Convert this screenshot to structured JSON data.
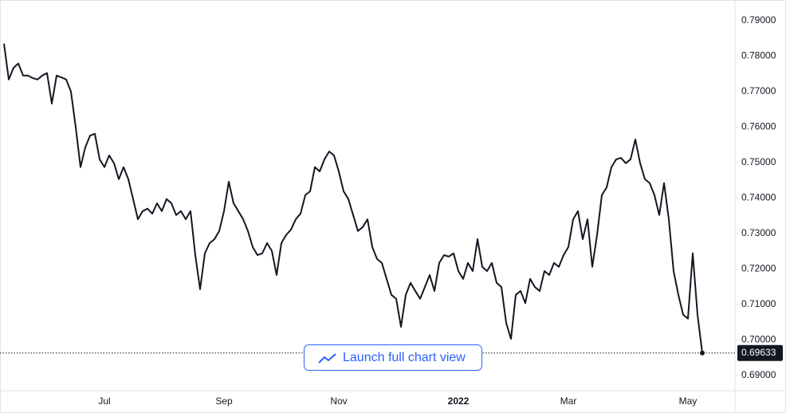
{
  "chart_data": {
    "type": "line",
    "categories": [
      null,
      null,
      null,
      null,
      null,
      null,
      null,
      null,
      null,
      null,
      null,
      null,
      null,
      null,
      null,
      null,
      null,
      null,
      null,
      null,
      null,
      "Jul",
      null,
      null,
      null,
      null,
      null,
      null,
      null,
      null,
      null,
      null,
      null,
      null,
      null,
      null,
      null,
      null,
      null,
      null,
      null,
      null,
      null,
      null,
      null,
      null,
      "Sep",
      null,
      null,
      null,
      null,
      null,
      null,
      null,
      null,
      null,
      null,
      null,
      null,
      null,
      null,
      null,
      null,
      null,
      null,
      null,
      null,
      null,
      null,
      null,
      "Nov",
      null,
      null,
      null,
      null,
      null,
      null,
      null,
      null,
      null,
      null,
      null,
      null,
      null,
      null,
      null,
      null,
      null,
      null,
      null,
      null,
      null,
      null,
      null,
      null,
      "2022",
      null,
      null,
      null,
      null,
      null,
      null,
      null,
      null,
      null,
      null,
      null,
      null,
      null,
      null,
      null,
      null,
      null,
      null,
      null,
      null,
      null,
      null,
      "Mar",
      null,
      null,
      null,
      null,
      null,
      null,
      null,
      null,
      null,
      null,
      null,
      null,
      null,
      null,
      null,
      null,
      null,
      null,
      null,
      null,
      null,
      null,
      null,
      null,
      "May",
      null,
      null,
      null
    ],
    "values": [
      0.7835,
      0.7734,
      0.7767,
      0.7779,
      0.7745,
      0.7745,
      0.7738,
      0.7734,
      0.7745,
      0.7752,
      0.7666,
      0.7745,
      0.774,
      0.7734,
      0.77,
      0.7599,
      0.7487,
      0.7543,
      0.7576,
      0.7581,
      0.7509,
      0.7487,
      0.752,
      0.7498,
      0.7453,
      0.7487,
      0.7453,
      0.7397,
      0.734,
      0.7363,
      0.737,
      0.7356,
      0.7385,
      0.7363,
      0.7397,
      0.7385,
      0.7352,
      0.7363,
      0.734,
      0.7363,
      0.7239,
      0.7143,
      0.7244,
      0.7273,
      0.7284,
      0.7307,
      0.7363,
      0.7446,
      0.7385,
      0.7363,
      0.734,
      0.7307,
      0.7262,
      0.7239,
      0.7244,
      0.7273,
      0.7251,
      0.7183,
      0.7273,
      0.7296,
      0.7311,
      0.734,
      0.7356,
      0.7408,
      0.7419,
      0.7487,
      0.7475,
      0.7509,
      0.7531,
      0.752,
      0.7475,
      0.7419,
      0.7397,
      0.7352,
      0.7307,
      0.7318,
      0.734,
      0.7262,
      0.7228,
      0.7217,
      0.7172,
      0.7127,
      0.7116,
      0.7037,
      0.7127,
      0.7161,
      0.7138,
      0.7116,
      0.7149,
      0.7183,
      0.7138,
      0.7217,
      0.7239,
      0.7235,
      0.7244,
      0.7194,
      0.7172,
      0.7217,
      0.7194,
      0.7284,
      0.7206,
      0.7194,
      0.7217,
      0.7161,
      0.7149,
      0.7048,
      0.7003,
      0.7127,
      0.7138,
      0.7104,
      0.7172,
      0.7149,
      0.7138,
      0.7194,
      0.7183,
      0.7217,
      0.7206,
      0.7239,
      0.7262,
      0.734,
      0.7363,
      0.7284,
      0.734,
      0.7206,
      0.7296,
      0.7408,
      0.743,
      0.7487,
      0.7509,
      0.7513,
      0.7498,
      0.7509,
      0.7565,
      0.7498,
      0.7453,
      0.7442,
      0.7408,
      0.7352,
      0.7442,
      0.734,
      0.7194,
      0.7127,
      0.7071,
      0.706,
      0.7244,
      0.7071,
      0.69633
    ],
    "color": "#131722",
    "ylim": [
      0.6857,
      0.7958
    ],
    "yticks": [
      {
        "value": 0.69,
        "label": "0.69000"
      },
      {
        "value": 0.7,
        "label": "0.70000"
      },
      {
        "value": 0.71,
        "label": "0.71000"
      },
      {
        "value": 0.72,
        "label": "0.72000"
      },
      {
        "value": 0.73,
        "label": "0.73000"
      },
      {
        "value": 0.74,
        "label": "0.74000"
      },
      {
        "value": 0.75,
        "label": "0.75000"
      },
      {
        "value": 0.76,
        "label": "0.76000"
      },
      {
        "value": 0.77,
        "label": "0.77000"
      },
      {
        "value": 0.78,
        "label": "0.78000"
      },
      {
        "value": 0.79,
        "label": "0.79000"
      }
    ],
    "grid": false
  },
  "ui": {
    "button": "Launch full chart view"
  }
}
